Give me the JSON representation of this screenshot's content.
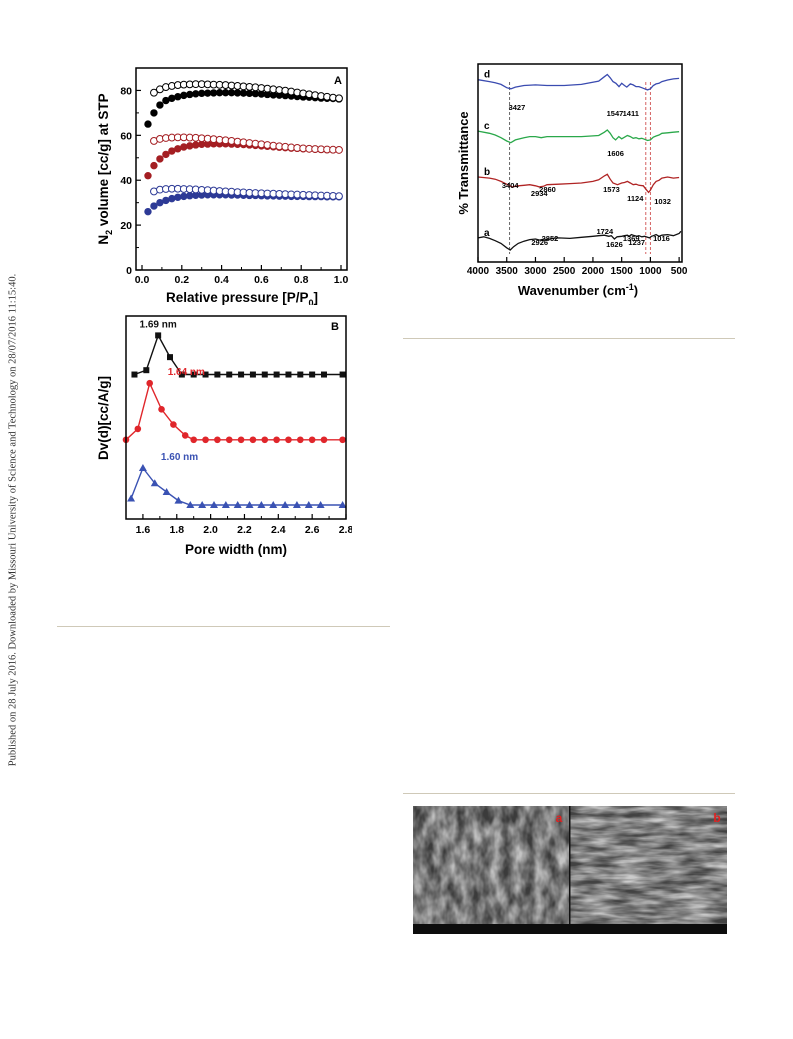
{
  "side_note": "Published on 28 July 2016. Downloaded by Missouri University of Science and Technology on 28/07/2016 11:15:40.",
  "chart_data": [
    {
      "type": "scatter",
      "panel_label": "A",
      "xlabel": "Relative pressure [P/P",
      "xlabel_sub": "0",
      "xlabel_end": "]",
      "ylabel_pre": "N",
      "ylabel_sub": "2",
      "ylabel_post": " volume [cc/g] at STP",
      "xlim": [
        0.0,
        1.0
      ],
      "ylim": [
        0,
        90
      ],
      "xticks": [
        "0.0",
        "0.2",
        "0.4",
        "0.6",
        "0.8",
        "1.0"
      ],
      "yticks": [
        "0",
        "20",
        "40",
        "60",
        "80"
      ],
      "x": [
        0.03,
        0.06,
        0.09,
        0.12,
        0.15,
        0.18,
        0.21,
        0.24,
        0.27,
        0.3,
        0.33,
        0.36,
        0.39,
        0.42,
        0.45,
        0.48,
        0.51,
        0.54,
        0.57,
        0.6,
        0.63,
        0.66,
        0.69,
        0.72,
        0.75,
        0.78,
        0.81,
        0.84,
        0.87,
        0.9,
        0.93,
        0.96,
        0.99
      ],
      "series": [
        {
          "color": "#000000",
          "filled": true,
          "values": [
            65,
            70,
            73.5,
            75.5,
            76.5,
            77.2,
            77.8,
            78.2,
            78.5,
            78.7,
            78.8,
            78.9,
            79.0,
            79.0,
            79.0,
            78.9,
            78.8,
            78.7,
            78.6,
            78.4,
            78.2,
            78.0,
            77.9,
            77.7,
            77.5,
            77.3,
            77.1,
            77.0,
            76.8,
            76.6,
            76.5,
            76.4,
            76.2
          ]
        },
        {
          "color": "#000000",
          "filled": false,
          "values": [
            null,
            79,
            80.5,
            81.5,
            82,
            82.4,
            82.6,
            82.7,
            82.8,
            82.8,
            82.7,
            82.6,
            82.5,
            82.4,
            82.2,
            82.0,
            81.8,
            81.6,
            81.4,
            81.1,
            80.8,
            80.5,
            80.2,
            79.9,
            79.5,
            79.1,
            78.7,
            78.3,
            77.9,
            77.5,
            77.2,
            76.8,
            76.5
          ]
        },
        {
          "color": "#a41e22",
          "filled": true,
          "values": [
            42,
            46.5,
            49.5,
            51.5,
            53,
            54,
            54.8,
            55.3,
            55.7,
            56.0,
            56.1,
            56.2,
            56.2,
            56.2,
            56.1,
            56.0,
            55.9,
            55.7,
            55.5,
            55.3,
            55.1,
            54.9,
            54.7,
            54.5,
            54.3,
            54.2,
            54.0,
            53.9,
            53.8,
            53.7,
            53.6,
            53.6,
            53.5
          ]
        },
        {
          "color": "#a41e22",
          "filled": false,
          "values": [
            null,
            57.5,
            58.4,
            58.8,
            59,
            59.1,
            59.1,
            59.0,
            58.9,
            58.7,
            58.5,
            58.3,
            58.0,
            57.8,
            57.5,
            57.2,
            56.9,
            56.6,
            56.3,
            56.0,
            55.7,
            55.4,
            55.1,
            54.9,
            54.6,
            54.4,
            54.2,
            54.0,
            53.9,
            53.8,
            53.7,
            53.6,
            53.5
          ]
        },
        {
          "color": "#2d3a96",
          "filled": true,
          "values": [
            26,
            28.5,
            30,
            31,
            31.8,
            32.4,
            32.8,
            33.1,
            33.3,
            33.4,
            33.5,
            33.5,
            33.5,
            33.5,
            33.4,
            33.4,
            33.3,
            33.2,
            33.2,
            33.1,
            33.0,
            33.0,
            32.9,
            32.9,
            32.8,
            32.8,
            32.8,
            32.7,
            32.7,
            32.7,
            32.6,
            32.6,
            32.6
          ]
        },
        {
          "color": "#2d3a96",
          "filled": false,
          "values": [
            null,
            35,
            35.8,
            36.1,
            36.2,
            36.2,
            36.1,
            36.0,
            35.9,
            35.7,
            35.6,
            35.4,
            35.2,
            35.0,
            34.9,
            34.7,
            34.6,
            34.4,
            34.3,
            34.2,
            34.1,
            34.0,
            33.9,
            33.8,
            33.7,
            33.6,
            33.5,
            33.4,
            33.3,
            33.2,
            33.1,
            33.0,
            32.9
          ]
        }
      ]
    },
    {
      "type": "line",
      "panel_label": "B",
      "xlabel": "Pore width (nm)",
      "ylabel": "Dv(d)[cc/A/g]",
      "xlim": [
        1.5,
        2.8
      ],
      "xticks": [
        "1.6",
        "1.8",
        "2.0",
        "2.2",
        "2.4",
        "2.6",
        "2.8"
      ],
      "series": [
        {
          "color": "#111111",
          "marker": "square",
          "peak_label": "1.69 nm",
          "x": [
            1.55,
            1.62,
            1.69,
            1.76,
            1.83,
            1.9,
            1.97,
            2.04,
            2.11,
            2.18,
            2.25,
            2.32,
            2.39,
            2.46,
            2.53,
            2.6,
            2.67,
            2.78
          ],
          "values": [
            3.0,
            3.1,
            3.9,
            3.4,
            3.0,
            3.0,
            3.0,
            3.0,
            3.0,
            3.0,
            3.0,
            3.0,
            3.0,
            3.0,
            3.0,
            3.0,
            3.0,
            3.0
          ]
        },
        {
          "color": "#e0262b",
          "marker": "circle",
          "peak_label": "1.64 nm",
          "x": [
            1.5,
            1.57,
            1.64,
            1.71,
            1.78,
            1.85,
            1.9,
            1.97,
            2.04,
            2.11,
            2.18,
            2.25,
            2.32,
            2.39,
            2.46,
            2.53,
            2.6,
            2.67,
            2.78
          ],
          "values": [
            1.5,
            1.75,
            2.8,
            2.2,
            1.85,
            1.6,
            1.5,
            1.5,
            1.5,
            1.5,
            1.5,
            1.5,
            1.5,
            1.5,
            1.5,
            1.5,
            1.5,
            1.5,
            1.5
          ]
        },
        {
          "color": "#3a52b3",
          "marker": "triangle",
          "peak_label": "1.60 nm",
          "x": [
            1.53,
            1.6,
            1.67,
            1.74,
            1.81,
            1.88,
            1.95,
            2.02,
            2.09,
            2.16,
            2.23,
            2.3,
            2.37,
            2.44,
            2.51,
            2.58,
            2.65,
            2.78
          ],
          "values": [
            0.15,
            0.85,
            0.5,
            0.3,
            0.1,
            0.0,
            0.0,
            0.0,
            0.0,
            0.0,
            0.0,
            0.0,
            0.0,
            0.0,
            0.0,
            0.0,
            0.0,
            0.0
          ]
        }
      ]
    },
    {
      "type": "line",
      "xlabel_pre": "Wavenumber (cm",
      "xlabel_sup": "-1",
      "xlabel_post": ")",
      "ylabel": "% Transmittance",
      "xlim": [
        4000,
        450
      ],
      "xticks": [
        "4000",
        "3500",
        "3000",
        "2500",
        "2000",
        "1500",
        "1000",
        "500"
      ],
      "series": [
        {
          "name": "d",
          "color": "#3a4bb0",
          "x": [
            4000,
            3800,
            3700,
            3600,
            3500,
            3427,
            3350,
            3200,
            3000,
            2800,
            2500,
            2200,
            1900,
            1800,
            1750,
            1700,
            1650,
            1600,
            1547,
            1500,
            1450,
            1411,
            1350,
            1300,
            1250,
            1200,
            1150,
            1100,
            1050,
            1000,
            950,
            900,
            850,
            800,
            700,
            600,
            500
          ],
          "values": [
            0.5,
            -3,
            -5,
            -8,
            -14,
            -16,
            -13,
            -10,
            -9,
            -10,
            -10,
            -8,
            -2,
            6,
            10,
            4,
            -3,
            -6,
            -12,
            -6,
            -10,
            -13,
            -7,
            -9,
            -12,
            -12,
            -14,
            -16,
            -18,
            -16,
            -10,
            -7,
            -6,
            -3,
            0,
            2,
            3
          ]
        },
        {
          "name": "c",
          "color": "#2aa84a",
          "x": [
            4000,
            3800,
            3700,
            3600,
            3500,
            3430,
            3350,
            3200,
            3100,
            3000,
            2900,
            2800,
            2500,
            2200,
            1900,
            1800,
            1750,
            1700,
            1650,
            1606,
            1550,
            1500,
            1450,
            1400,
            1350,
            1300,
            1250,
            1200,
            1150,
            1100,
            1050,
            1000,
            950,
            900,
            850,
            800,
            700,
            600,
            500
          ],
          "values": [
            -2,
            -6,
            -9,
            -14,
            -20,
            -23,
            -18,
            -14,
            -12,
            -12,
            -14,
            -12,
            -12,
            -12,
            -10,
            -4,
            0,
            -6,
            -14,
            -18,
            -12,
            -16,
            -13,
            -10,
            -12,
            -15,
            -14,
            -16,
            -15,
            -17,
            -19,
            -18,
            -13,
            -11,
            -9,
            -6,
            -5,
            -4,
            -3
          ]
        },
        {
          "name": "b",
          "color": "#b02424",
          "x": [
            4000,
            3800,
            3700,
            3600,
            3500,
            3404,
            3300,
            3200,
            3100,
            3000,
            2934,
            2860,
            2800,
            2600,
            2400,
            2200,
            2000,
            1900,
            1800,
            1750,
            1700,
            1650,
            1573,
            1500,
            1450,
            1400,
            1350,
            1300,
            1250,
            1200,
            1124,
            1080,
            1032,
            1000,
            950,
            900,
            850,
            800,
            700,
            600,
            500
          ],
          "values": [
            -20,
            -22,
            -24,
            -28,
            -33,
            -38,
            -36,
            -35,
            -34,
            -36,
            -38,
            -37,
            -34,
            -33,
            -32,
            -31,
            -28,
            -25,
            -18,
            -15,
            -24,
            -31,
            -34,
            -31,
            -30,
            -28,
            -31,
            -34,
            -33,
            -35,
            -36,
            -42,
            -48,
            -44,
            -34,
            -28,
            -26,
            -22,
            -20,
            -22,
            -21
          ]
        },
        {
          "name": "a",
          "color": "#111111",
          "x": [
            4000,
            3900,
            3800,
            3700,
            3600,
            3500,
            3440,
            3380,
            3300,
            3200,
            3100,
            3000,
            2926,
            2852,
            2800,
            2700,
            2600,
            2400,
            2200,
            2000,
            1900,
            1800,
            1724,
            1680,
            1626,
            1580,
            1500,
            1450,
            1400,
            1369,
            1330,
            1300,
            1237,
            1200,
            1150,
            1100,
            1016,
            980,
            950,
            900,
            850,
            800,
            700,
            600,
            500,
            470
          ],
          "values": [
            -58,
            -56,
            -59,
            -63,
            -68,
            -76,
            -80,
            -74,
            -68,
            -64,
            -61,
            -60,
            -62,
            -60,
            -61,
            -59,
            -58,
            -59,
            -57,
            -55,
            -54,
            -53,
            -55,
            -54,
            -60,
            -56,
            -55,
            -54,
            -53,
            -55,
            -52,
            -53,
            -55,
            -54,
            -56,
            -55,
            -58,
            -55,
            -54,
            -52,
            -55,
            -53,
            -52,
            -54,
            -50,
            -46
          ]
        }
      ],
      "annotations": [
        "3427",
        "1547",
        "1411",
        "1606",
        "3404",
        "2934",
        "2860",
        "1573",
        "1124",
        "1032",
        "2926",
        "2852",
        "1724",
        "1626",
        "1369",
        "1237",
        "1016"
      ],
      "guides": [
        3450,
        1080,
        1000
      ]
    }
  ],
  "sem": {
    "labels": [
      "a",
      "b"
    ]
  }
}
